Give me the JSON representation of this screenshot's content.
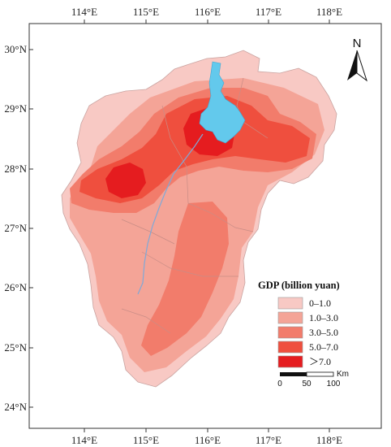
{
  "map": {
    "longitude_labels": [
      "114°E",
      "115°E",
      "116°E",
      "117°E",
      "118°E"
    ],
    "latitude_labels": [
      "30°N",
      "29°N",
      "28°N",
      "27°N",
      "26°N",
      "25°N",
      "24°N"
    ],
    "north_label": "N",
    "legend": {
      "title": "GDP (billion yuan)",
      "items": [
        {
          "label": "0–1.0",
          "color": "#f8c9c4"
        },
        {
          "label": "1.0–3.0",
          "color": "#f4a497"
        },
        {
          "label": "3.0–5.0",
          "color": "#f27c6b"
        },
        {
          "label": "5.0–7.0",
          "color": "#ef4f3e"
        },
        {
          "label": "＞7.0",
          "color": "#e51c1f"
        }
      ]
    },
    "scale_bar": {
      "unit": "Km",
      "ticks": [
        "0",
        "50",
        "100"
      ]
    },
    "colors": {
      "lake": "#63c9ec",
      "river": "#7fa9d8",
      "background": "#ffffff"
    }
  }
}
